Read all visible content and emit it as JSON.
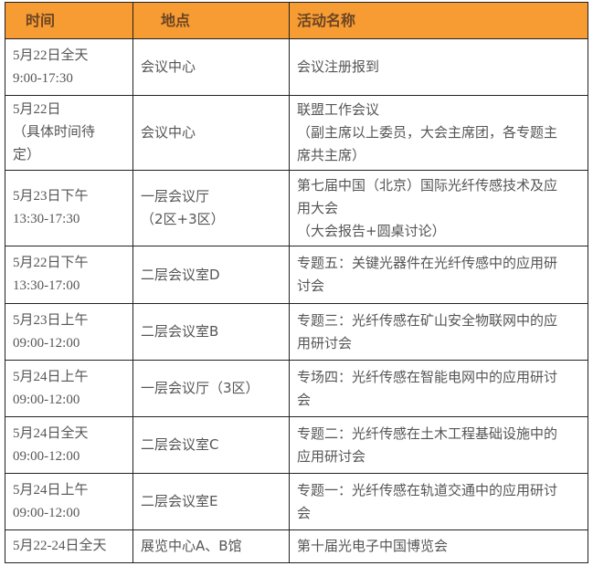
{
  "table": {
    "headers": [
      "时间",
      "地点",
      "活动名称"
    ],
    "header_color": "#F79B33",
    "rows": [
      {
        "time": "5月22日全天\n9:00-17:30",
        "place": "会议中心",
        "event": "会议注册报到"
      },
      {
        "time": "5月22日\n（具体时间待\n定）",
        "place": "会议中心",
        "event": "联盟工作会议\n（副主席以上委员，大会主席团，各专题主\n席共主席）"
      },
      {
        "time": "5月23日下午\n13:30-17:30",
        "place": "一层会议厅\n（2区+3区）",
        "event": "第七届中国（北京）国际光纤传感技术及应\n用大会\n（大会报告+圆桌讨论）"
      },
      {
        "time": "5月22日下午\n13:30-17:00",
        "place": "二层会议室D",
        "event": "专题五：关键光器件在光纤传感中的应用研\n讨会"
      },
      {
        "time": "5月23日上午\n09:00-12:00",
        "place": "二层会议室B",
        "event": "专题三：光纤传感在矿山安全物联网中的应\n用研讨会"
      },
      {
        "time": "5月24日上午\n09:00-12:00",
        "place": "一层会议厅（3区）",
        "event": "专场四：光纤传感在智能电网中的应用研讨\n会"
      },
      {
        "time": "5月24日全天\n09:00-12:00",
        "place": "二层会议室C",
        "event": "专题二：光纤传感在土木工程基础设施中的\n应用研讨会"
      },
      {
        "time": "5月24日上午\n09:00-12:00",
        "place": "二层会议室E",
        "event": "专题一：光纤传感在轨道交通中的应用研讨\n会"
      },
      {
        "time": "5月22-24日全天",
        "place": "展览中心A、B馆",
        "event": "第十届光电子中国博览会"
      }
    ]
  }
}
